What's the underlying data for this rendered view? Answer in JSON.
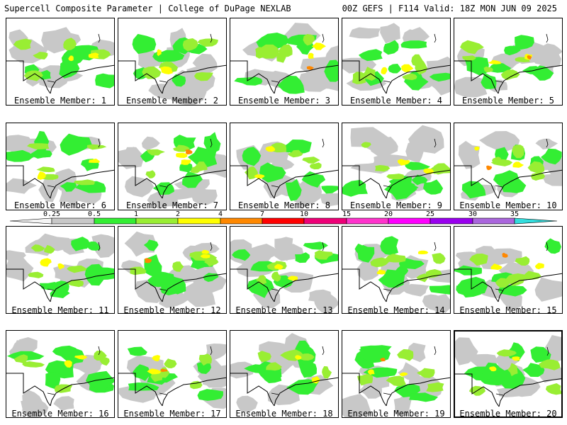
{
  "header": {
    "left": "Supercell Composite Parameter | College of DuPage NEXLAB",
    "right": "00Z GEFS | F114 Valid: 18Z MON JUN 09 2025"
  },
  "legend": {
    "ticks": [
      "0.25",
      "0.5",
      "1",
      "2",
      "4",
      "7",
      "10",
      "15",
      "20",
      "25",
      "30",
      "35"
    ],
    "colors": [
      "#d9d9d9",
      "#c8c8c8",
      "#33ee33",
      "#99ee33",
      "#ffff00",
      "#ff8800",
      "#ff0000",
      "#ee0077",
      "#ff33cc",
      "#ff00ff",
      "#9900ee",
      "#aa66dd",
      "#33dddd"
    ]
  },
  "members": [
    {
      "label": "Ensemble Member: 1"
    },
    {
      "label": "Ensemble Member: 2"
    },
    {
      "label": "Ensemble Member: 3"
    },
    {
      "label": "Ensemble Member: 4"
    },
    {
      "label": "Ensemble Member: 5"
    },
    {
      "label": "Ensemble Member: 6"
    },
    {
      "label": "Ensemble Member: 7"
    },
    {
      "label": "Ensemble Member: 8"
    },
    {
      "label": "Ensemble Member: 9"
    },
    {
      "label": "Ensemble Member: 10"
    },
    {
      "label": "Ensemble Member: 11"
    },
    {
      "label": "Ensemble Member: 12"
    },
    {
      "label": "Ensemble Member: 13"
    },
    {
      "label": "Ensemble Member: 14"
    },
    {
      "label": "Ensemble Member: 15"
    },
    {
      "label": "Ensemble Member: 16"
    },
    {
      "label": "Ensemble Member: 17"
    },
    {
      "label": "Ensemble Member: 18"
    },
    {
      "label": "Ensemble Member: 19"
    },
    {
      "label": "Ensemble Member: 20"
    }
  ]
}
